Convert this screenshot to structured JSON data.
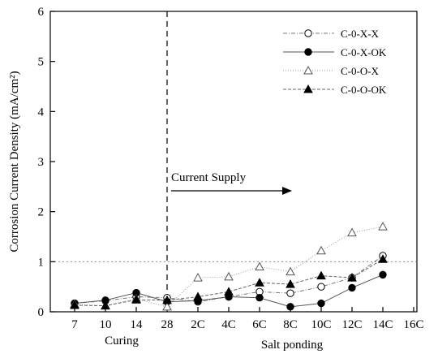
{
  "chart_data": {
    "type": "line",
    "title": "",
    "xlabel": "",
    "ylabel": "Corrosion Current Density (mA/cm²)",
    "ylim": [
      0,
      6
    ],
    "yticks": [
      "0",
      "1",
      "2",
      "3",
      "4",
      "5",
      "6"
    ],
    "categories": [
      "7",
      "10",
      "14",
      "28",
      "2C",
      "4C",
      "6C",
      "8C",
      "10C",
      "12C",
      "14C",
      "16C"
    ],
    "phase_labels": {
      "curing": "Curing",
      "salt": "Salt ponding"
    },
    "annotation": "Current Supply",
    "reference_line_y": 1,
    "grid": false,
    "legend_position": "top-right",
    "series": [
      {
        "name": "C-0-X-X",
        "marker": "open-circle",
        "values": [
          0.17,
          0.22,
          0.3,
          0.28,
          0.2,
          0.3,
          0.4,
          0.37,
          0.5,
          0.68,
          1.12,
          null
        ]
      },
      {
        "name": "C-0-X-OK",
        "marker": "filled-circle",
        "values": [
          0.17,
          0.23,
          0.38,
          0.2,
          0.22,
          0.3,
          0.28,
          0.1,
          0.17,
          0.48,
          0.74,
          null
        ]
      },
      {
        "name": "C-0-O-X",
        "marker": "open-triangle",
        "values": [
          0.15,
          0.12,
          0.26,
          0.1,
          0.68,
          0.7,
          0.9,
          0.8,
          1.22,
          1.58,
          1.7,
          null
        ]
      },
      {
        "name": "C-0-O-OK",
        "marker": "filled-triangle",
        "values": [
          0.13,
          0.12,
          0.24,
          0.23,
          0.3,
          0.4,
          0.58,
          0.55,
          0.72,
          0.68,
          1.05,
          null
        ]
      }
    ]
  }
}
